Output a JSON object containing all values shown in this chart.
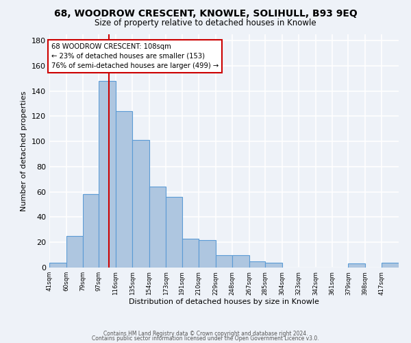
{
  "title": "68, WOODROW CRESCENT, KNOWLE, SOLIHULL, B93 9EQ",
  "subtitle": "Size of property relative to detached houses in Knowle",
  "xlabel": "Distribution of detached houses by size in Knowle",
  "ylabel": "Number of detached properties",
  "bar_labels": [
    "41sqm",
    "60sqm",
    "79sqm",
    "97sqm",
    "116sqm",
    "135sqm",
    "154sqm",
    "173sqm",
    "191sqm",
    "210sqm",
    "229sqm",
    "248sqm",
    "267sqm",
    "285sqm",
    "304sqm",
    "323sqm",
    "342sqm",
    "361sqm",
    "379sqm",
    "398sqm",
    "417sqm"
  ],
  "bar_values": [
    4,
    25,
    58,
    148,
    124,
    101,
    64,
    56,
    23,
    22,
    10,
    10,
    5,
    4,
    0,
    0,
    0,
    0,
    3,
    0,
    4
  ],
  "bar_color": "#aec6e0",
  "bar_edge_color": "#5b9bd5",
  "background_color": "#eef2f8",
  "grid_color": "#ffffff",
  "ylim": [
    0,
    185
  ],
  "yticks": [
    0,
    20,
    40,
    60,
    80,
    100,
    120,
    140,
    160,
    180
  ],
  "annotation_line1": "68 WOODROW CRESCENT: 108sqm",
  "annotation_line2": "← 23% of detached houses are smaller (153)",
  "annotation_line3": "76% of semi-detached houses are larger (499) →",
  "property_size": 108,
  "bin_starts": [
    41,
    60,
    79,
    97,
    116,
    135,
    154,
    173,
    191,
    210,
    229,
    248,
    267,
    285,
    304,
    323,
    342,
    361,
    379,
    398,
    417
  ],
  "footer1": "Contains HM Land Registry data © Crown copyright and database right 2024.",
  "footer2": "Contains public sector information licensed under the Open Government Licence v3.0."
}
